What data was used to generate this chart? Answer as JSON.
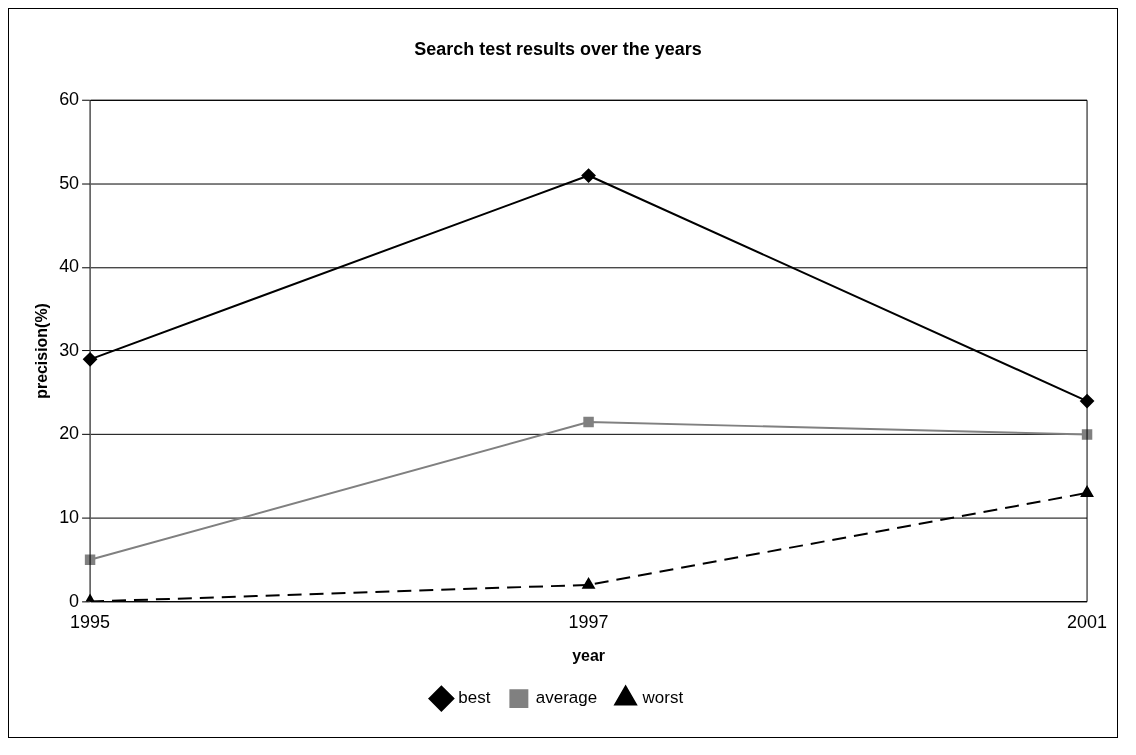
{
  "chart_data": {
    "type": "line",
    "title": "Search test results over the years",
    "xlabel": "year",
    "ylabel": "precision(%)",
    "categories": [
      "1995",
      "1997",
      "2001"
    ],
    "series": [
      {
        "name": "best",
        "color": "#000000",
        "values": [
          29,
          51,
          24
        ],
        "marker": "diamond",
        "line_style": "solid"
      },
      {
        "name": "average",
        "color": "#808080",
        "values": [
          5,
          21.5,
          20
        ],
        "marker": "square",
        "line_style": "solid"
      },
      {
        "name": "worst",
        "color": "#000000",
        "values": [
          0,
          2,
          13
        ],
        "marker": "triangle",
        "line_style": "dashed"
      }
    ],
    "ylim": [
      0,
      60
    ],
    "yticks": [
      0,
      10,
      20,
      30,
      40,
      50,
      60
    ],
    "grid": "y",
    "legend": "bottom"
  }
}
